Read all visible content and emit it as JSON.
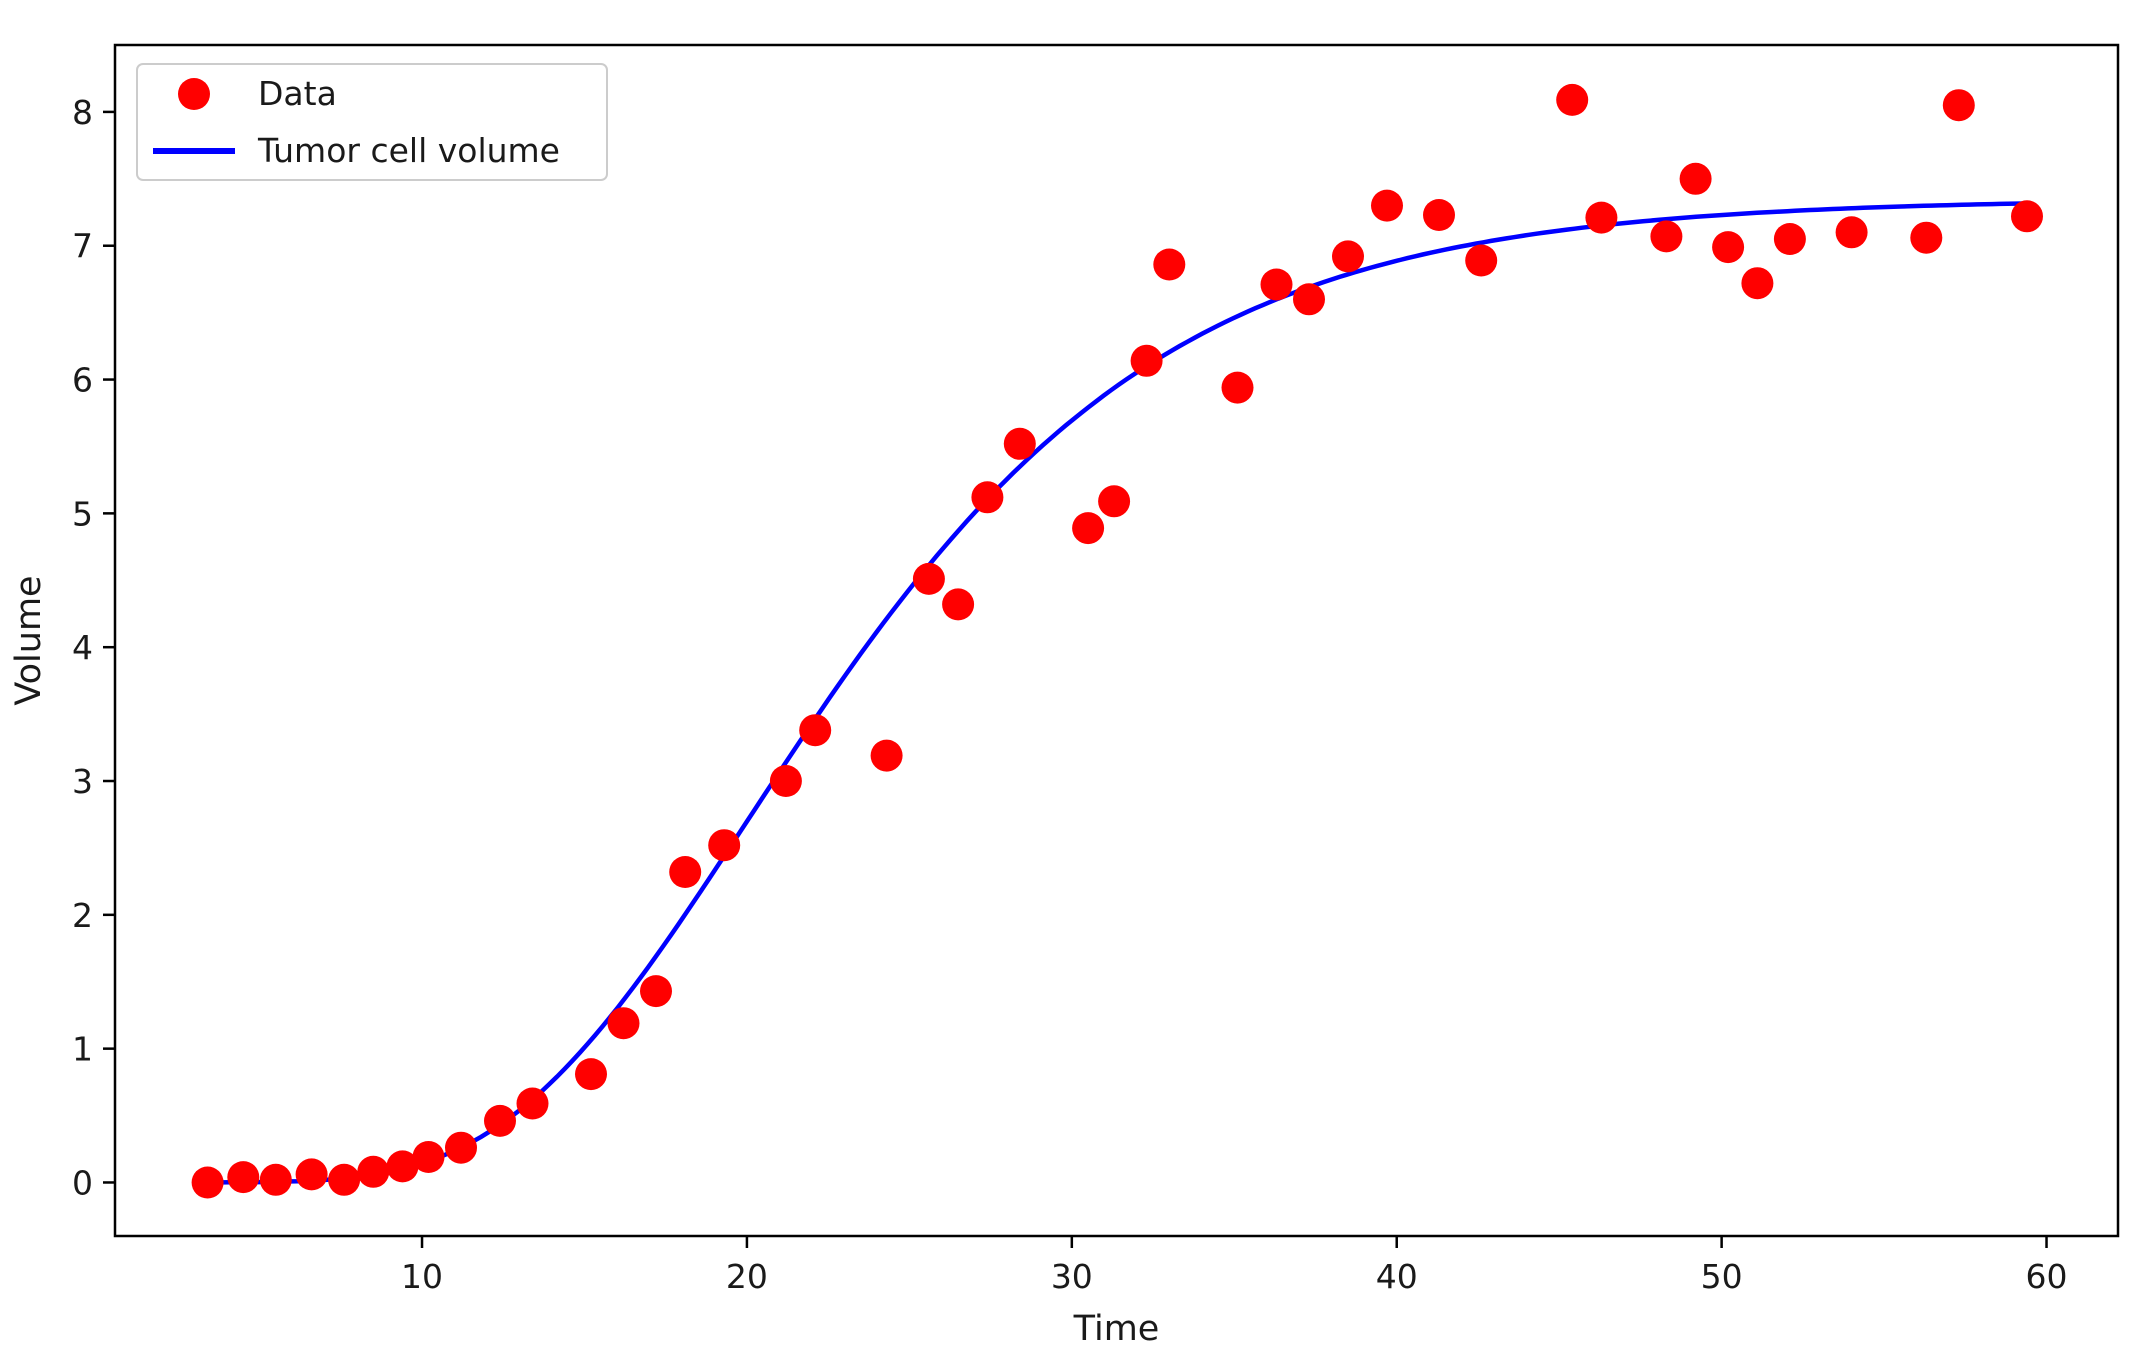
{
  "chart_data": {
    "type": "scatter",
    "title": "",
    "xlabel": "Time",
    "ylabel": "Volume",
    "legend": [
      "Data",
      "Tumor cell volume"
    ],
    "legend_position": "upper left",
    "grid": false,
    "xlim": [
      0.55,
      62.2
    ],
    "ylim": [
      -0.4,
      8.5
    ],
    "x_ticks": [
      10,
      20,
      30,
      40,
      50,
      60
    ],
    "y_ticks": [
      0,
      1,
      2,
      3,
      4,
      5,
      6,
      7,
      8
    ],
    "colors": {
      "scatter": "#ff0000",
      "line": "#0000ff",
      "axis": "#000000",
      "legend_border": "#cccccc"
    },
    "series": [
      {
        "name": "Data",
        "kind": "scatter",
        "points": [
          [
            3.4,
            0.0
          ],
          [
            4.5,
            0.04
          ],
          [
            5.5,
            0.02
          ],
          [
            6.6,
            0.06
          ],
          [
            7.6,
            0.02
          ],
          [
            8.5,
            0.08
          ],
          [
            9.4,
            0.12
          ],
          [
            10.2,
            0.19
          ],
          [
            11.2,
            0.26
          ],
          [
            12.4,
            0.46
          ],
          [
            13.4,
            0.59
          ],
          [
            15.2,
            0.81
          ],
          [
            16.2,
            1.19
          ],
          [
            17.2,
            1.43
          ],
          [
            18.1,
            2.32
          ],
          [
            19.3,
            2.52
          ],
          [
            21.2,
            3.0
          ],
          [
            22.1,
            3.38
          ],
          [
            24.3,
            3.19
          ],
          [
            25.6,
            4.51
          ],
          [
            26.5,
            4.32
          ],
          [
            27.4,
            5.12
          ],
          [
            28.4,
            5.52
          ],
          [
            30.5,
            4.89
          ],
          [
            31.3,
            5.09
          ],
          [
            32.3,
            6.14
          ],
          [
            33.0,
            6.86
          ],
          [
            35.1,
            5.94
          ],
          [
            36.3,
            6.71
          ],
          [
            37.3,
            6.6
          ],
          [
            38.5,
            6.92
          ],
          [
            39.7,
            7.3
          ],
          [
            41.3,
            7.23
          ],
          [
            42.6,
            6.89
          ],
          [
            45.4,
            8.09
          ],
          [
            46.3,
            7.21
          ],
          [
            48.3,
            7.07
          ],
          [
            49.2,
            7.5
          ],
          [
            50.2,
            6.99
          ],
          [
            51.1,
            6.72
          ],
          [
            52.1,
            7.05
          ],
          [
            54.0,
            7.1
          ],
          [
            56.3,
            7.06
          ],
          [
            57.3,
            8.05
          ],
          [
            59.4,
            7.22
          ]
        ]
      },
      {
        "name": "Tumor cell volume",
        "kind": "line",
        "model": "gompertz",
        "params": {
          "L": 7.35,
          "b": 15.46,
          "c": 0.1368
        },
        "x_start": 3.4,
        "x_end": 59.5
      }
    ]
  }
}
